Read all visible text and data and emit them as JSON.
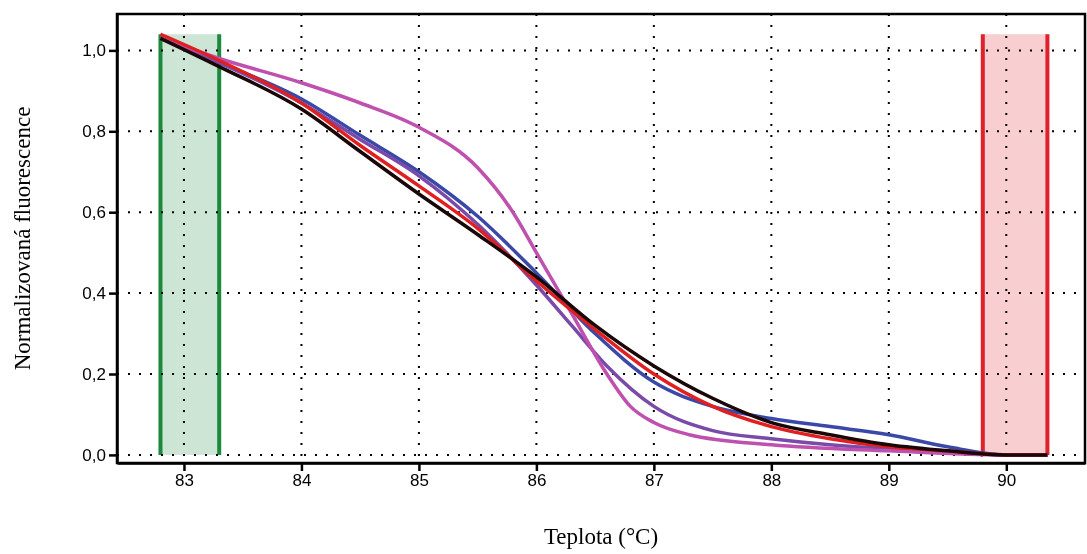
{
  "chart_data": {
    "type": "line",
    "xlabel": "Teplota (°C)",
    "ylabel": "Normalizovaná fluorescence",
    "xlim": [
      82.43,
      90.67
    ],
    "xticks": [
      83,
      84,
      85,
      86,
      87,
      88,
      89,
      90
    ],
    "ylim": [
      -0.02,
      1.09
    ],
    "yticks": [
      {
        "value": 0,
        "label": "0,0"
      },
      {
        "value": 0.2,
        "label": "0,2"
      },
      {
        "value": 0.4,
        "label": "0,4"
      },
      {
        "value": 0.6,
        "label": "0,6"
      },
      {
        "value": 0.8,
        "label": "0,8"
      },
      {
        "value": 1,
        "label": "1,0"
      }
    ],
    "grid": true,
    "line_style": "solid",
    "marker": "none",
    "bands": [
      {
        "axis": "x",
        "from": 82.8,
        "to": 83.3,
        "color": "#1a8a3c"
      },
      {
        "axis": "x",
        "from": 89.8,
        "to": 90.35,
        "color": "#e0202a"
      }
    ],
    "series": [
      {
        "color": "#3a48a8",
        "x": [
          82.8,
          83.3,
          84,
          84.5,
          85,
          85.5,
          86,
          86.5,
          87,
          87.5,
          88,
          88.5,
          89,
          89.5,
          90,
          90.35
        ],
        "values": [
          1.03,
          0.97,
          0.88,
          0.79,
          0.7,
          0.59,
          0.45,
          0.3,
          0.18,
          0.12,
          0.09,
          0.07,
          0.05,
          0.02,
          0.0,
          0.0
        ]
      },
      {
        "color": "#7a4aa8",
        "x": [
          82.8,
          83.3,
          84,
          84.5,
          85,
          85.5,
          86,
          86.3,
          86.6,
          87,
          87.5,
          88,
          88.5,
          89,
          89.5,
          90,
          90.35
        ],
        "values": [
          1.03,
          0.97,
          0.87,
          0.78,
          0.69,
          0.57,
          0.42,
          0.32,
          0.22,
          0.12,
          0.06,
          0.04,
          0.025,
          0.015,
          0.008,
          0.0,
          0.0
        ]
      },
      {
        "color": "#c050b0",
        "x": [
          82.8,
          83.3,
          84,
          84.5,
          85,
          85.5,
          85.8,
          86,
          86.3,
          86.6,
          86.8,
          87,
          87.3,
          88,
          89,
          90,
          90.35
        ],
        "values": [
          1.03,
          0.98,
          0.92,
          0.87,
          0.81,
          0.71,
          0.6,
          0.5,
          0.35,
          0.2,
          0.12,
          0.08,
          0.05,
          0.025,
          0.01,
          0.0,
          0.0
        ]
      },
      {
        "color": "#e02020",
        "x": [
          82.8,
          83.3,
          84,
          84.5,
          85,
          85.5,
          86,
          86.5,
          87,
          87.5,
          88,
          88.5,
          89,
          89.5,
          90,
          90.35
        ],
        "values": [
          1.04,
          0.975,
          0.87,
          0.765,
          0.665,
          0.56,
          0.43,
          0.31,
          0.2,
          0.12,
          0.07,
          0.04,
          0.02,
          0.01,
          0.0,
          0.0
        ]
      },
      {
        "color": "#1a0808",
        "x": [
          82.8,
          83.3,
          84,
          84.5,
          85,
          85.5,
          86,
          86.5,
          87,
          87.5,
          88,
          88.5,
          89,
          89.5,
          90,
          90.35
        ],
        "values": [
          1.03,
          0.96,
          0.855,
          0.75,
          0.645,
          0.545,
          0.44,
          0.32,
          0.22,
          0.14,
          0.08,
          0.05,
          0.025,
          0.01,
          0.0,
          0.0
        ]
      }
    ]
  }
}
